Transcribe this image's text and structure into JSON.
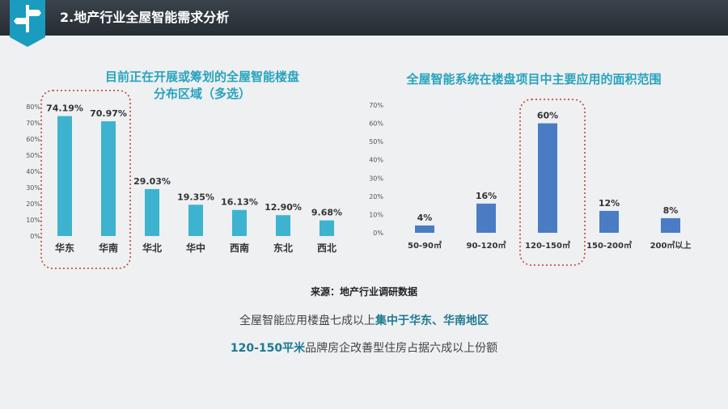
{
  "header": {
    "title": "2.地产行业全屋智能需求分析",
    "logo_icon": "signpost-icon"
  },
  "colors": {
    "left_bar": "#3db3cf",
    "right_bar": "#4a7cc4",
    "title": "#29a3bd",
    "highlight_box": "#c0392b"
  },
  "left_chart": {
    "title_line1": "目前正在开展或筹划的全屋智能楼盘",
    "title_line2": "分布区域（多选）"
  },
  "right_chart": {
    "title": "全屋智能系统在楼盘项目中主要应用的面积范围"
  },
  "source": "来源：地产行业调研数据",
  "summary": {
    "line1_plain": "全屋智能应用楼盘七成以上",
    "line1_highlight": "集中于华东、华南地区",
    "line2_highlight": "120-150平米",
    "line2_plain": "品牌房企改善型住房占据六成以上份额"
  },
  "chart_data": [
    {
      "type": "bar",
      "title": "目前正在开展或筹划的全屋智能楼盘分布区域（多选）",
      "categories": [
        "华东",
        "华南",
        "华北",
        "华中",
        "西南",
        "东北",
        "西北"
      ],
      "values": [
        74.19,
        70.97,
        29.03,
        19.35,
        16.13,
        12.9,
        9.68
      ],
      "value_labels": [
        "74.19%",
        "70.97%",
        "29.03%",
        "19.35%",
        "16.13%",
        "12.90%",
        "9.68%"
      ],
      "yticks": [
        "0%",
        "10%",
        "20%",
        "30%",
        "40%",
        "50%",
        "60%",
        "70%",
        "80%"
      ],
      "ylim": [
        0,
        80
      ],
      "grid": false,
      "highlighted": [
        "华东",
        "华南"
      ]
    },
    {
      "type": "bar",
      "title": "全屋智能系统在楼盘项目中主要应用的面积范围",
      "categories": [
        "50-90㎡",
        "90-120㎡",
        "120-150㎡",
        "150-200㎡",
        "200㎡以上"
      ],
      "values": [
        4,
        16,
        60,
        12,
        8
      ],
      "value_labels": [
        "4%",
        "16%",
        "60%",
        "12%",
        "8%"
      ],
      "yticks": [
        "0%",
        "10%",
        "20%",
        "30%",
        "40%",
        "50%",
        "60%",
        "70%"
      ],
      "ylim": [
        0,
        70
      ],
      "grid": false,
      "highlighted": [
        "120-150㎡"
      ]
    }
  ]
}
